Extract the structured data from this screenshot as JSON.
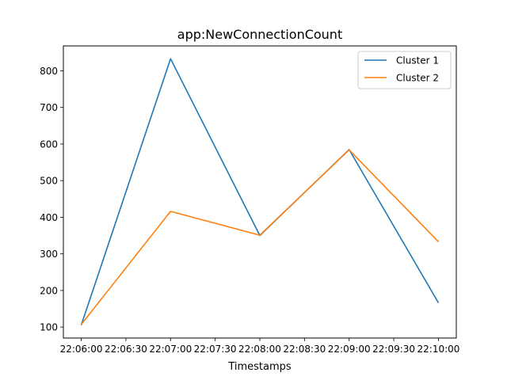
{
  "chart_data": {
    "type": "line",
    "title": "app:NewConnectionCount",
    "xlabel": "Timestamps",
    "ylabel": "",
    "x_ticks": [
      "22:06:00",
      "22:06:30",
      "22:07:00",
      "22:07:30",
      "22:08:00",
      "22:08:30",
      "22:09:00",
      "22:09:30",
      "22:10:00"
    ],
    "x": [
      "22:06:00",
      "22:07:00",
      "22:08:00",
      "22:09:00",
      "22:10:00"
    ],
    "xlim": [
      "22:05:48",
      "22:10:12"
    ],
    "y_ticks": [
      100,
      200,
      300,
      400,
      500,
      600,
      700,
      800
    ],
    "ylim": [
      70,
      868
    ],
    "grid": false,
    "legend_position": "top-right",
    "series": [
      {
        "name": "Cluster 1",
        "color": "#1f77b4",
        "values": [
          105,
          833,
          350,
          585,
          166
        ]
      },
      {
        "name": "Cluster 2",
        "color": "#ff7f0e",
        "values": [
          107,
          416,
          351,
          584,
          333
        ]
      }
    ]
  }
}
